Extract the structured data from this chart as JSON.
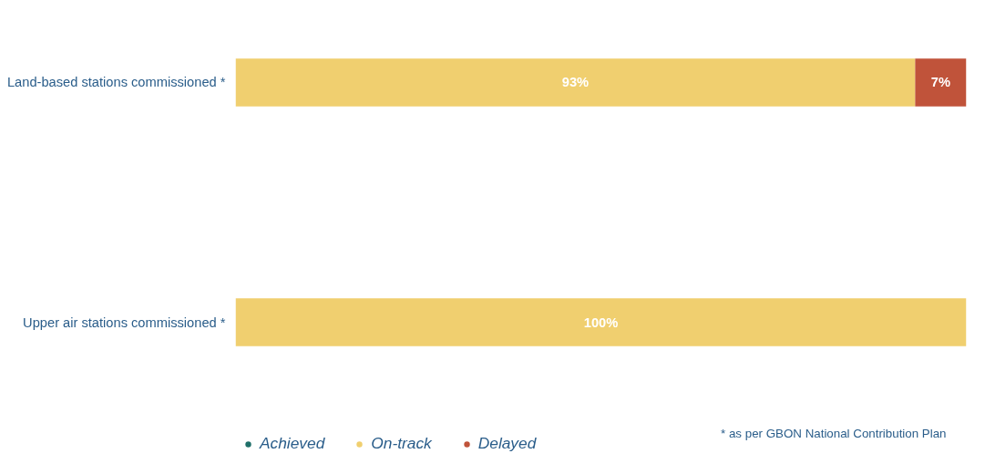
{
  "chart_data": {
    "type": "bar",
    "orientation": "horizontal",
    "stacked": true,
    "categories": [
      "Land-based stations commissioned *",
      "Upper air stations commissioned *"
    ],
    "series": [
      {
        "name": "Achieved",
        "color": "#1f6f69",
        "values": [
          null,
          null
        ],
        "value_labels": [
          null,
          null
        ]
      },
      {
        "name": "On-track",
        "color": "#f0cf6f",
        "values": [
          93,
          100
        ],
        "value_labels": [
          "93%",
          "100%"
        ]
      },
      {
        "name": "Delayed",
        "color": "#c0533a",
        "values": [
          7,
          null
        ],
        "value_labels": [
          "7%",
          null
        ]
      }
    ],
    "legend": "bottom",
    "annotations": [
      "* as per GBON National Contribution Plan"
    ]
  }
}
